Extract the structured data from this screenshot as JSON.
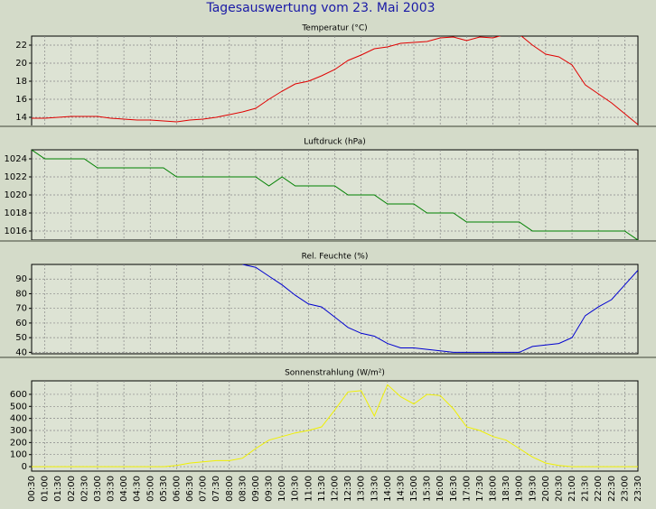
{
  "title": "Tagesauswertung vom 23. Mai 2003",
  "chart_data": [
    {
      "type": "line",
      "title": "Temperatur (°C)",
      "color": "#e00000",
      "ylim": [
        13,
        23
      ],
      "yticks": [
        14,
        16,
        18,
        20,
        22
      ],
      "grid": true,
      "values": [
        13.9,
        13.9,
        14.0,
        14.1,
        14.1,
        14.1,
        13.9,
        13.8,
        13.7,
        13.7,
        13.6,
        13.5,
        13.7,
        13.8,
        14.0,
        14.3,
        14.6,
        15.0,
        16.0,
        16.9,
        17.7,
        18.0,
        18.6,
        19.3,
        20.3,
        20.9,
        21.6,
        21.8,
        22.2,
        22.3,
        22.4,
        22.8,
        22.9,
        22.5,
        22.9,
        22.8,
        23.2,
        23.2,
        22.0,
        21.0,
        20.7,
        19.8,
        17.6,
        16.6,
        15.6,
        14.4,
        13.2
      ]
    },
    {
      "type": "line",
      "title": "Luftdruck (hPa)",
      "color": "#008000",
      "ylim": [
        1015,
        1025
      ],
      "yticks": [
        1016,
        1018,
        1020,
        1022,
        1024
      ],
      "grid": true,
      "values": [
        1025,
        1024,
        1024,
        1024,
        1024,
        1023,
        1023,
        1023,
        1023,
        1023,
        1023,
        1022,
        1022,
        1022,
        1022,
        1022,
        1022,
        1022,
        1021,
        1022,
        1021,
        1021,
        1021,
        1021,
        1020,
        1020,
        1020,
        1019,
        1019,
        1019,
        1018,
        1018,
        1018,
        1017,
        1017,
        1017,
        1017,
        1017,
        1016,
        1016,
        1016,
        1016,
        1016,
        1016,
        1016,
        1016,
        1015
      ]
    },
    {
      "type": "line",
      "title": "Rel. Feuchte (%)",
      "color": "#0000d0",
      "ylim": [
        39,
        100
      ],
      "yticks": [
        40,
        50,
        60,
        70,
        80,
        90
      ],
      "grid": true,
      "values": [
        null,
        null,
        null,
        null,
        null,
        null,
        null,
        null,
        null,
        null,
        null,
        null,
        null,
        null,
        null,
        null,
        100,
        98,
        92,
        86,
        79,
        73,
        71,
        64,
        57,
        53,
        51,
        46,
        43,
        43,
        42,
        41,
        40,
        40,
        40,
        40,
        40,
        40,
        44,
        45,
        46,
        50,
        65,
        71,
        76,
        86,
        96
      ]
    },
    {
      "type": "line",
      "title": "Sonnenstrahlung (W/m²)",
      "color": "#f0f000",
      "ylim": [
        -37,
        712
      ],
      "yticks": [
        0,
        100,
        200,
        300,
        400,
        500,
        600
      ],
      "grid": true,
      "values": [
        0,
        0,
        0,
        0,
        0,
        0,
        0,
        0,
        0,
        0,
        0,
        10,
        30,
        40,
        50,
        50,
        70,
        150,
        220,
        250,
        280,
        300,
        330,
        470,
        620,
        630,
        420,
        680,
        580,
        520,
        600,
        590,
        480,
        330,
        300,
        250,
        220,
        150,
        80,
        30,
        10,
        0,
        0,
        0,
        0,
        0,
        0
      ],
      "categories": [
        "00:30",
        "01:00",
        "01:30",
        "02:00",
        "02:30",
        "03:00",
        "03:30",
        "04:00",
        "04:30",
        "05:00",
        "05:30",
        "06:00",
        "06:30",
        "07:00",
        "07:30",
        "08:00",
        "08:30",
        "09:00",
        "09:30",
        "10:00",
        "10:30",
        "11:00",
        "11:30",
        "12:00",
        "12:30",
        "13:00",
        "13:30",
        "14:00",
        "14:30",
        "15:00",
        "15:30",
        "16:00",
        "16:30",
        "17:00",
        "17:30",
        "18:00",
        "18:30",
        "19:00",
        "19:30",
        "20:00",
        "20:30",
        "21:00",
        "21:30",
        "22:00",
        "22:30",
        "23:00",
        "23:30"
      ]
    }
  ]
}
